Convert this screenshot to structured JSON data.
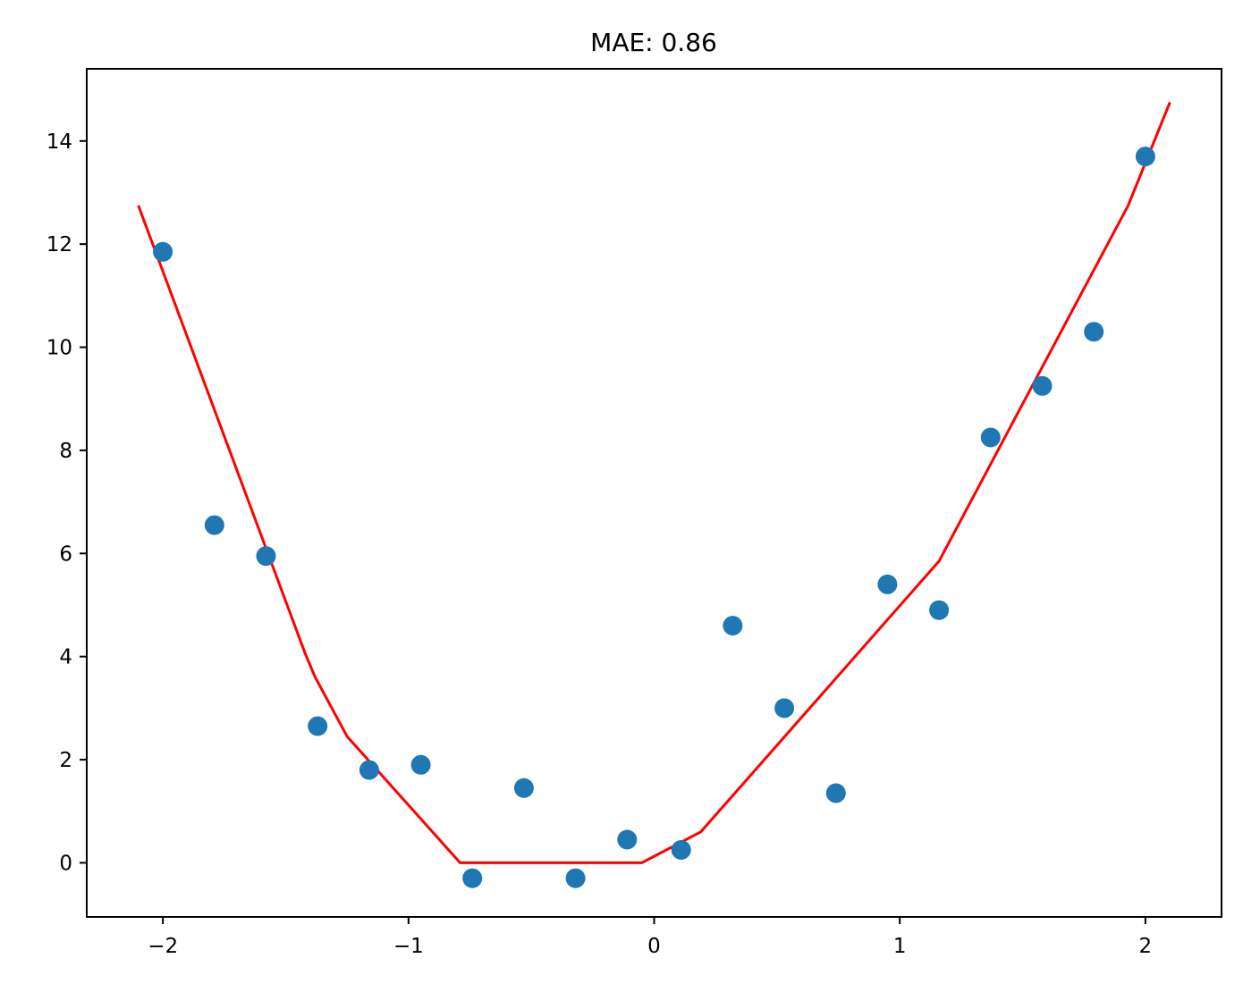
{
  "chart_data": {
    "type": "scatter",
    "title": "MAE: 0.86",
    "xlabel": "",
    "ylabel": "",
    "xlim": [
      -2.31,
      2.31
    ],
    "ylim": [
      -1.05,
      15.4
    ],
    "x_ticks": [
      -2,
      -1,
      0,
      1,
      2
    ],
    "x_tick_labels": [
      "−2",
      "−1",
      "0",
      "1",
      "2"
    ],
    "y_ticks": [
      0,
      2,
      4,
      6,
      8,
      10,
      12,
      14
    ],
    "y_tick_labels": [
      "0",
      "2",
      "4",
      "6",
      "8",
      "10",
      "12",
      "14"
    ],
    "grid": false,
    "series": [
      {
        "kind": "scatter",
        "color": "#1f77b4",
        "x": [
          -2.0,
          -1.79,
          -1.58,
          -1.37,
          -1.16,
          -0.95,
          -0.74,
          -0.53,
          -0.32,
          -0.11,
          0.11,
          0.32,
          0.53,
          0.74,
          0.95,
          1.16,
          1.37,
          1.58,
          1.79,
          2.0
        ],
        "y": [
          11.85,
          6.55,
          5.95,
          2.65,
          1.8,
          1.9,
          -0.3,
          1.45,
          -0.3,
          0.45,
          0.25,
          4.6,
          3.0,
          1.35,
          5.4,
          4.9,
          8.25,
          9.25,
          10.3,
          13.7
        ]
      },
      {
        "kind": "line",
        "color": "#ff0000",
        "x": [
          -2.1,
          -1.42,
          -1.38,
          -1.25,
          -0.79,
          -0.05,
          -0.03,
          0.19,
          1.16,
          1.93,
          2.1
        ],
        "y": [
          12.75,
          4.05,
          3.6,
          2.45,
          0.0,
          0.0,
          0.05,
          0.6,
          5.85,
          12.75,
          14.75
        ]
      }
    ]
  }
}
